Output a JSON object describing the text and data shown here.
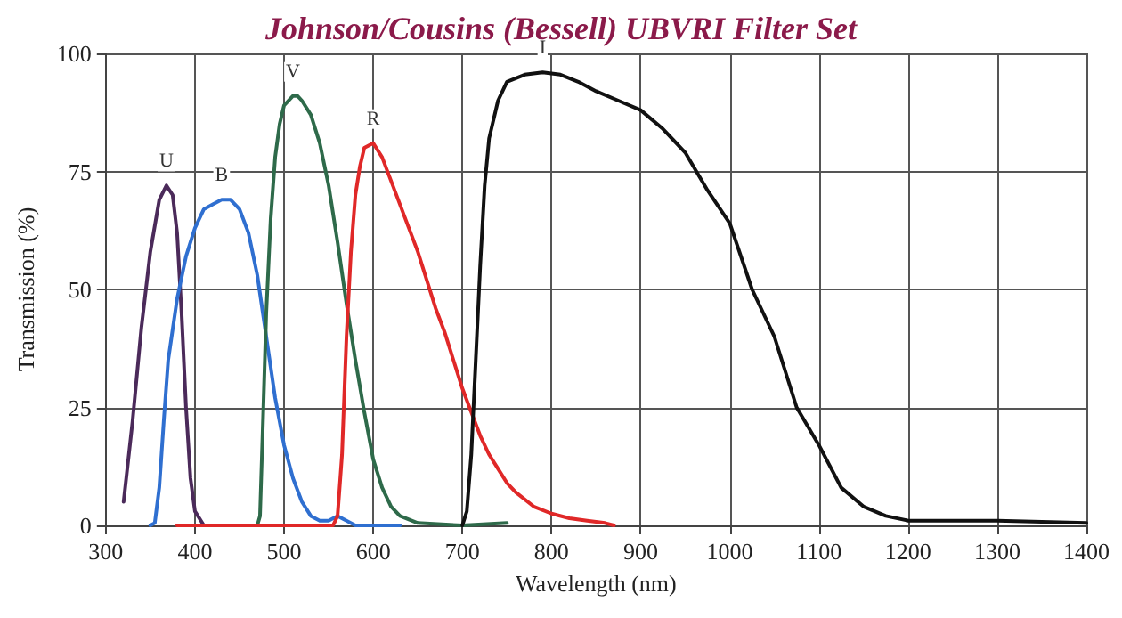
{
  "chart_data": {
    "type": "line",
    "title": "Johnson/Cousins (Bessell) UBVRI Filter Set",
    "xlabel": "Wavelength (nm)",
    "ylabel": "Transmission (%)",
    "xlim": [
      300,
      1400
    ],
    "xticks": [
      300,
      400,
      500,
      600,
      700,
      800,
      900,
      1000,
      1100,
      1200,
      1300,
      1400
    ],
    "ylim": [
      0,
      100
    ],
    "yticks": [
      0,
      25,
      50,
      75,
      100
    ],
    "grid": true,
    "legend": false,
    "marker": "none",
    "line_style": "solid",
    "series": [
      {
        "name": "U",
        "color": "#4b2a5a",
        "x": [
          320,
          330,
          340,
          350,
          360,
          368,
          375,
          380,
          385,
          390,
          395,
          400,
          410,
          420
        ],
        "values": [
          5,
          22,
          42,
          58,
          69,
          72,
          70,
          62,
          45,
          25,
          10,
          3,
          0,
          0
        ]
      },
      {
        "name": "B",
        "color": "#2f6fd0",
        "x": [
          350,
          355,
          360,
          365,
          370,
          380,
          390,
          400,
          410,
          420,
          430,
          440,
          450,
          460,
          470,
          480,
          490,
          500,
          510,
          520,
          530,
          540,
          550,
          560,
          570,
          580,
          600,
          630
        ],
        "values": [
          0,
          0.5,
          8,
          22,
          35,
          48,
          57,
          63,
          67,
          68,
          69,
          69,
          67,
          62,
          53,
          40,
          27,
          17,
          10,
          5,
          2,
          1,
          1,
          2,
          1,
          0,
          0,
          0
        ]
      },
      {
        "name": "V",
        "color": "#2e6a4a",
        "x": [
          470,
          473,
          476,
          480,
          485,
          490,
          495,
          500,
          510,
          515,
          520,
          530,
          540,
          550,
          560,
          570,
          580,
          590,
          600,
          610,
          620,
          630,
          650,
          700,
          750
        ],
        "values": [
          0,
          2,
          20,
          45,
          65,
          78,
          85,
          89,
          91,
          91,
          90,
          87,
          81,
          72,
          60,
          47,
          35,
          24,
          14,
          8,
          4,
          2,
          0.5,
          0,
          0.5
        ]
      },
      {
        "name": "R",
        "color": "#e02828",
        "x": [
          380,
          555,
          560,
          565,
          570,
          575,
          580,
          585,
          590,
          600,
          610,
          620,
          630,
          640,
          650,
          660,
          670,
          680,
          690,
          700,
          710,
          720,
          730,
          740,
          750,
          760,
          780,
          800,
          820,
          840,
          860,
          870
        ],
        "values": [
          0,
          0,
          2,
          15,
          40,
          58,
          70,
          76,
          80,
          81,
          78,
          73,
          68,
          63,
          58,
          52,
          46,
          41,
          35,
          29,
          24,
          19,
          15,
          12,
          9,
          7,
          4,
          2.5,
          1.5,
          1,
          0.5,
          0
        ]
      },
      {
        "name": "I",
        "color": "#111111",
        "x": [
          700,
          705,
          710,
          715,
          720,
          725,
          730,
          740,
          750,
          770,
          790,
          810,
          830,
          850,
          875,
          900,
          925,
          950,
          975,
          1000,
          1025,
          1050,
          1075,
          1100,
          1125,
          1150,
          1175,
          1200,
          1300,
          1400
        ],
        "values": [
          0,
          3,
          15,
          35,
          55,
          72,
          82,
          90,
          94,
          95.5,
          96,
          95.5,
          94,
          92,
          90,
          88,
          84,
          79,
          71,
          64,
          50,
          40,
          25,
          17,
          8,
          4,
          2,
          1,
          1,
          0.5
        ]
      }
    ]
  }
}
